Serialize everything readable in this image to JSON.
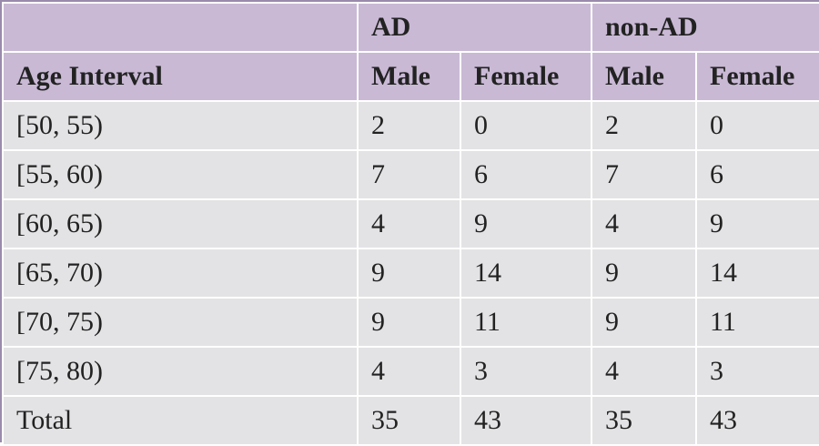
{
  "table": {
    "groups": [
      "AD",
      "non-AD"
    ],
    "columns": [
      "Age Interval",
      "Male",
      "Female",
      "Male",
      "Female"
    ],
    "rows": [
      [
        "[50, 55)",
        "2",
        "0",
        "2",
        "0"
      ],
      [
        "[55, 60)",
        "7",
        "6",
        "7",
        "6"
      ],
      [
        "[60, 65)",
        "4",
        "9",
        "4",
        "9"
      ],
      [
        "[65, 70)",
        "9",
        "14",
        "9",
        "14"
      ],
      [
        "[70, 75)",
        "9",
        "11",
        "9",
        "11"
      ],
      [
        "[75, 80)",
        "4",
        "3",
        "4",
        "3"
      ]
    ],
    "total": [
      "Total",
      "35",
      "43",
      "35",
      "43"
    ]
  },
  "colors": {
    "header_bg": "#c9b9d5",
    "body_bg": "#e3e3e5",
    "border": "#9a8aab"
  }
}
